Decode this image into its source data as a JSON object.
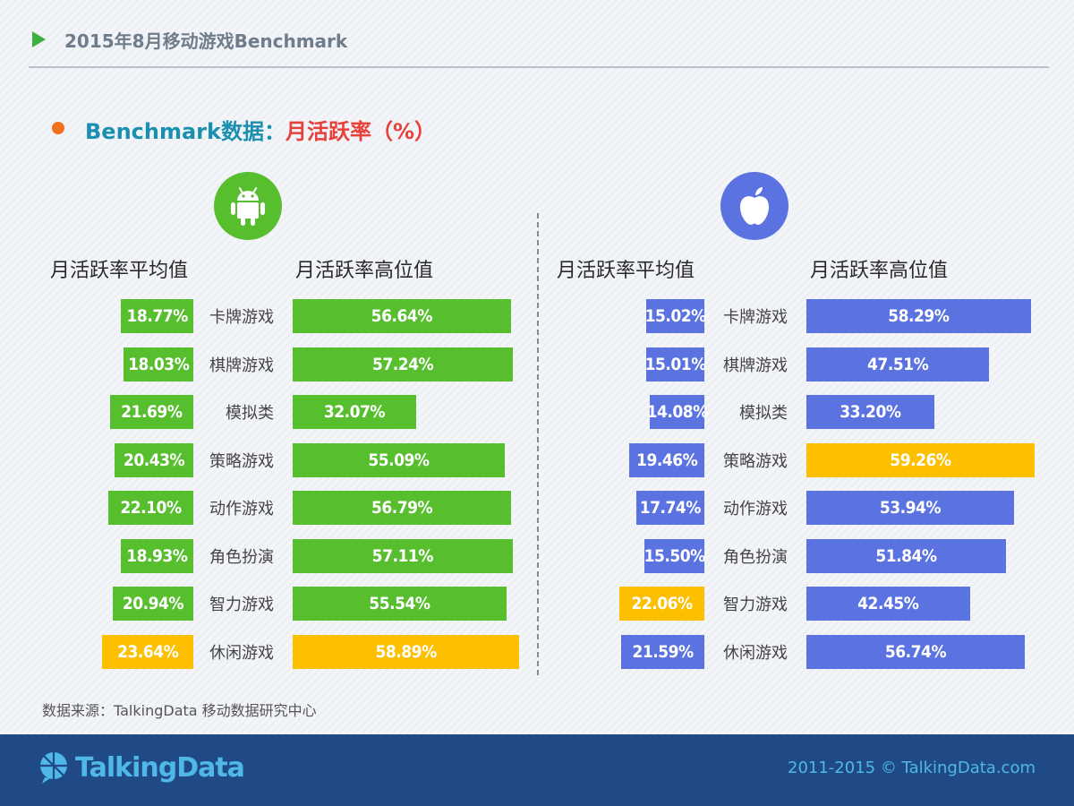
{
  "header": {
    "title": "2015年8月移动游戏Benchmark"
  },
  "section": {
    "title_a": "Benchmark数据：",
    "title_b": "月活跃率（%）"
  },
  "columns": {
    "android_avg": "月活跃率平均值",
    "android_high": "月活跃率高位值",
    "ios_avg": "月活跃率平均值",
    "ios_high": "月活跃率高位值"
  },
  "source": "数据来源：TalkingData 移动数据研究中心",
  "footer": {
    "brand": "TalkingData",
    "copyright": "2011-2015 © TalkingData.com"
  },
  "colors": {
    "android": "#57be2e",
    "ios": "#5b73e0",
    "highlight": "#fdc000"
  },
  "icons": {
    "android": "android-icon",
    "ios": "apple-icon",
    "brand": "talkingdata-logo-icon"
  },
  "chart_data": [
    {
      "type": "bar",
      "platform": "Android",
      "categories": [
        "卡牌游戏",
        "棋牌游戏",
        "模拟类",
        "策略游戏",
        "动作游戏",
        "角色扮演",
        "智力游戏",
        "休闲游戏"
      ],
      "series": [
        {
          "name": "月活跃率平均值",
          "values": [
            18.77,
            18.03,
            21.69,
            20.43,
            22.1,
            18.93,
            20.94,
            23.64
          ],
          "labels": [
            "18.77%",
            "18.03%",
            "21.69%",
            "20.43%",
            "22.10%",
            "18.93%",
            "20.94%",
            "23.64%"
          ],
          "highlight": [
            false,
            false,
            false,
            false,
            false,
            false,
            false,
            true
          ]
        },
        {
          "name": "月活跃率高位值",
          "values": [
            56.64,
            57.24,
            32.07,
            55.09,
            56.79,
            57.11,
            55.54,
            58.89
          ],
          "labels": [
            "56.64%",
            "57.24%",
            "32.07%",
            "55.09%",
            "56.79%",
            "57.11%",
            "55.54%",
            "58.89%"
          ],
          "highlight": [
            false,
            false,
            false,
            false,
            false,
            false,
            false,
            true
          ]
        }
      ]
    },
    {
      "type": "bar",
      "platform": "iOS",
      "categories": [
        "卡牌游戏",
        "棋牌游戏",
        "模拟类",
        "策略游戏",
        "动作游戏",
        "角色扮演",
        "智力游戏",
        "休闲游戏"
      ],
      "series": [
        {
          "name": "月活跃率平均值",
          "values": [
            15.02,
            15.01,
            14.08,
            19.46,
            17.74,
            15.5,
            22.06,
            21.59
          ],
          "labels": [
            "15.02%",
            "15.01%",
            "14.08%",
            "19.46%",
            "17.74%",
            "15.50%",
            "22.06%",
            "21.59%"
          ],
          "highlight": [
            false,
            false,
            false,
            false,
            false,
            false,
            true,
            false
          ]
        },
        {
          "name": "月活跃率高位值",
          "values": [
            58.29,
            47.51,
            33.2,
            59.26,
            53.94,
            51.84,
            42.45,
            56.74
          ],
          "labels": [
            "58.29%",
            "47.51%",
            "33.20%",
            "59.26%",
            "53.94%",
            "51.84%",
            "42.45%",
            "56.74%"
          ],
          "highlight": [
            false,
            false,
            false,
            true,
            false,
            false,
            false,
            false
          ]
        }
      ]
    }
  ]
}
